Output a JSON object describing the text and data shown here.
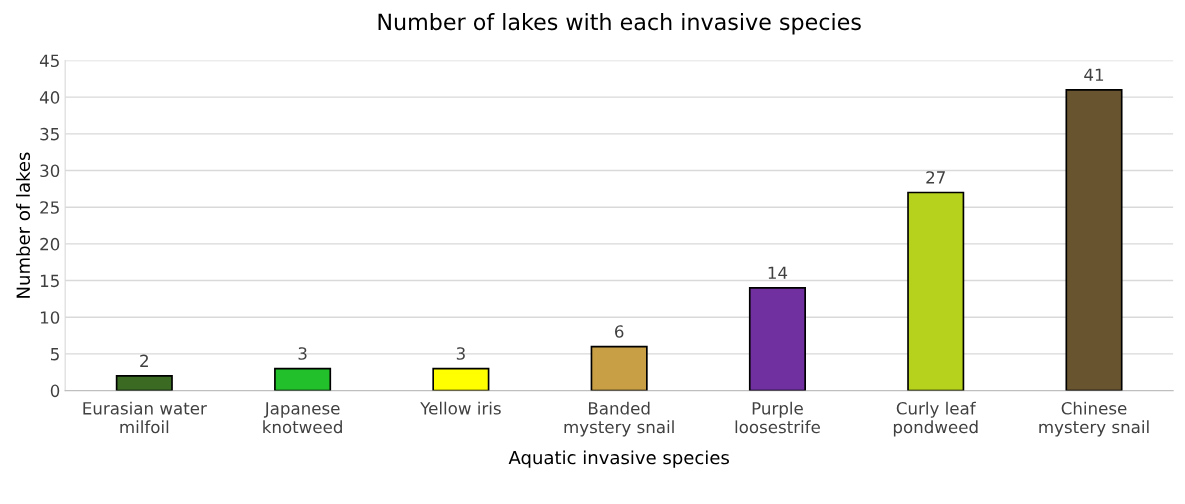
{
  "chart_data": {
    "type": "bar",
    "title": "Number of lakes with each invasive species",
    "xlabel": "Aquatic invasive species",
    "ylabel": "Number of lakes",
    "categories": [
      "Eurasian water\nmilfoil",
      "Japanese\nknotweed",
      "Yellow iris",
      "Banded\nmystery snail",
      "Purple\nloosestrife",
      "Curly leaf\npondweed",
      "Chinese\nmystery snail"
    ],
    "values": [
      2,
      3,
      3,
      6,
      14,
      27,
      41
    ],
    "colors": [
      "#3b6b22",
      "#22c12b",
      "#ffff00",
      "#c89f45",
      "#7030a0",
      "#b6d21c",
      "#685530"
    ],
    "ylim": [
      0,
      45
    ],
    "yticks": [
      0,
      5,
      10,
      15,
      20,
      25,
      30,
      35,
      40,
      45
    ],
    "grid": "y",
    "data_labels": true,
    "legend": false
  }
}
